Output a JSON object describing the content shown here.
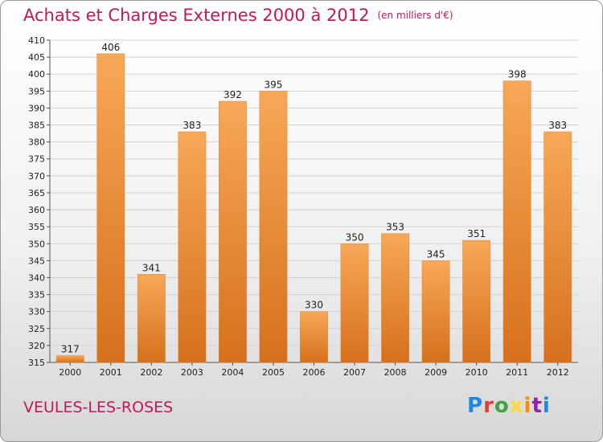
{
  "title": "Achats et Charges Externes 2000 à 2012",
  "unit": "(en milliers d'€)",
  "commune": "VEULES-LES-ROSES",
  "logo": [
    "P",
    "r",
    "o",
    "x",
    "i",
    "t",
    "i"
  ],
  "colors": {
    "bar_light": "#f6a24e",
    "bar_dark": "#d9741f",
    "title": "#c2185b"
  },
  "chart_data": {
    "type": "bar",
    "title": "Achats et Charges Externes 2000 à 2012",
    "subtitle": "(en milliers d'€)",
    "categories": [
      "2000",
      "2001",
      "2002",
      "2003",
      "2004",
      "2005",
      "2006",
      "2007",
      "2008",
      "2009",
      "2010",
      "2011",
      "2012"
    ],
    "values": [
      317,
      406,
      341,
      383,
      392,
      395,
      330,
      350,
      353,
      345,
      351,
      398,
      383
    ],
    "ylim": [
      315,
      410
    ],
    "yticks": [
      315,
      320,
      325,
      330,
      335,
      340,
      345,
      350,
      355,
      360,
      365,
      370,
      375,
      380,
      385,
      390,
      395,
      400,
      405,
      410
    ],
    "grid": true,
    "xlabel": "",
    "ylabel": ""
  }
}
